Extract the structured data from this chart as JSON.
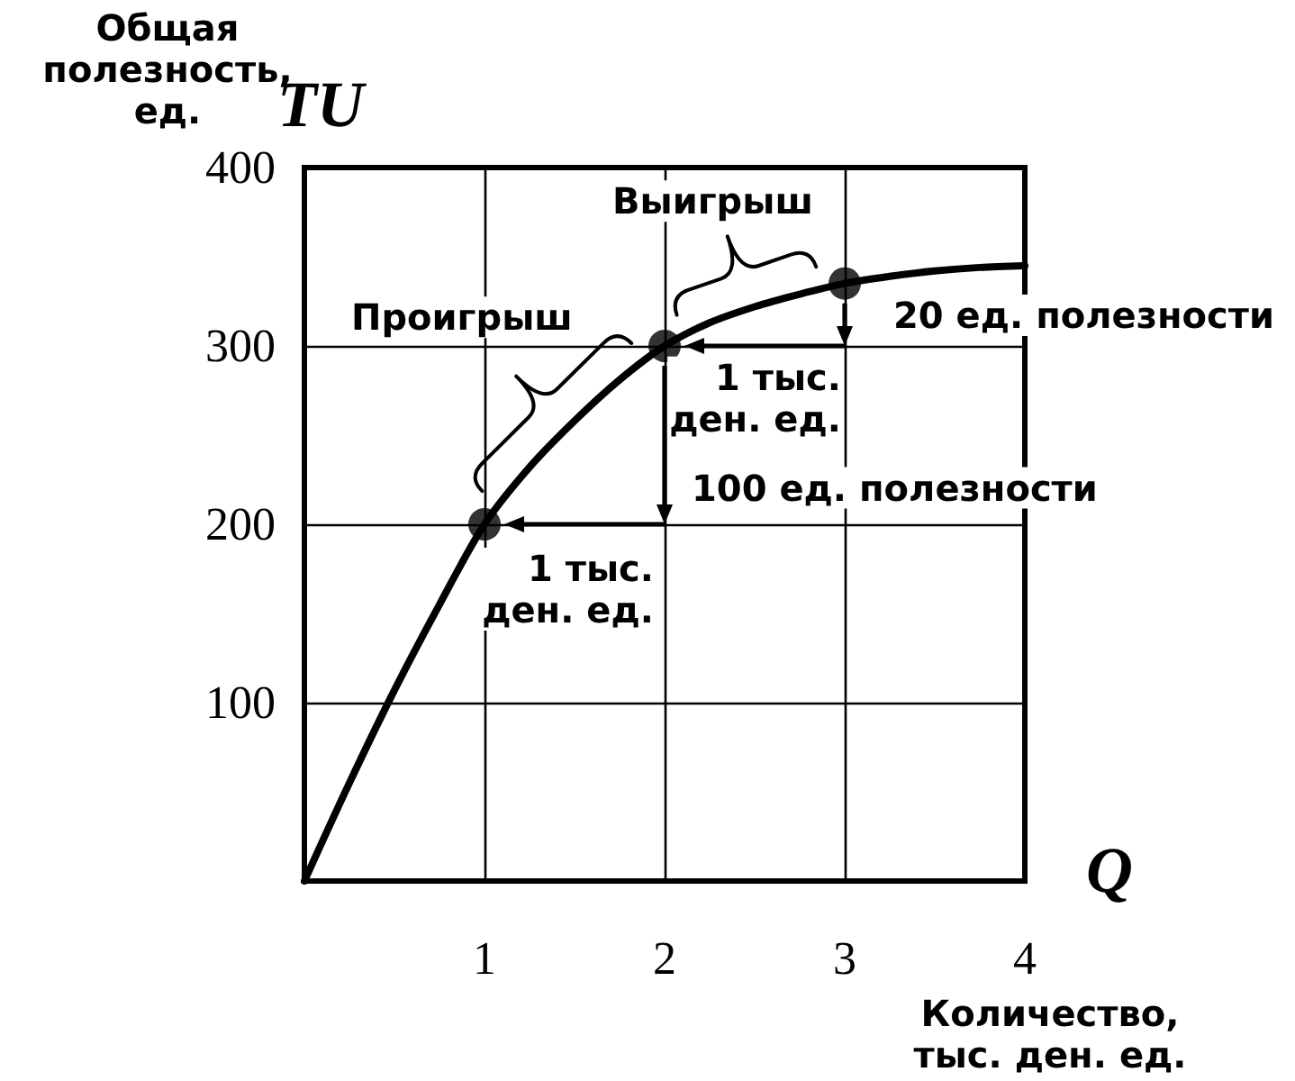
{
  "chart_data": {
    "type": "line",
    "xlabel": "Количество,\nтыс. ден. ед.",
    "ylabel": "Общая\nполезность,\nед.",
    "xlim": [
      0,
      4
    ],
    "ylim": [
      0,
      400
    ],
    "xticks": [
      1,
      2,
      3,
      4
    ],
    "yticks": [
      100,
      200,
      300,
      400
    ],
    "grid": true,
    "series": [
      {
        "color": "#000000",
        "x": [
          0,
          0.25,
          0.5,
          0.75,
          1,
          1.25,
          1.5,
          1.75,
          2,
          2.25,
          2.5,
          2.75,
          3,
          3.25,
          3.5,
          3.75,
          4
        ],
        "values": [
          0,
          55,
          107,
          155,
          200,
          232,
          258,
          281,
          300,
          313,
          322,
          329,
          335,
          339,
          342,
          344,
          345
        ],
        "marker": "none"
      },
      {
        "type": "scatter",
        "color": "#000000",
        "x": [
          1,
          2,
          3
        ],
        "values": [
          200,
          300,
          335
        ],
        "marker": "circle"
      }
    ],
    "annotations": [
      "TU",
      "Q",
      "Проигрыш",
      "Выигрыш",
      "20 ед. полезности",
      "1 тыс.\nден. ед.",
      "100 ед. полезности",
      "1 тыс.\nден. ед."
    ]
  }
}
